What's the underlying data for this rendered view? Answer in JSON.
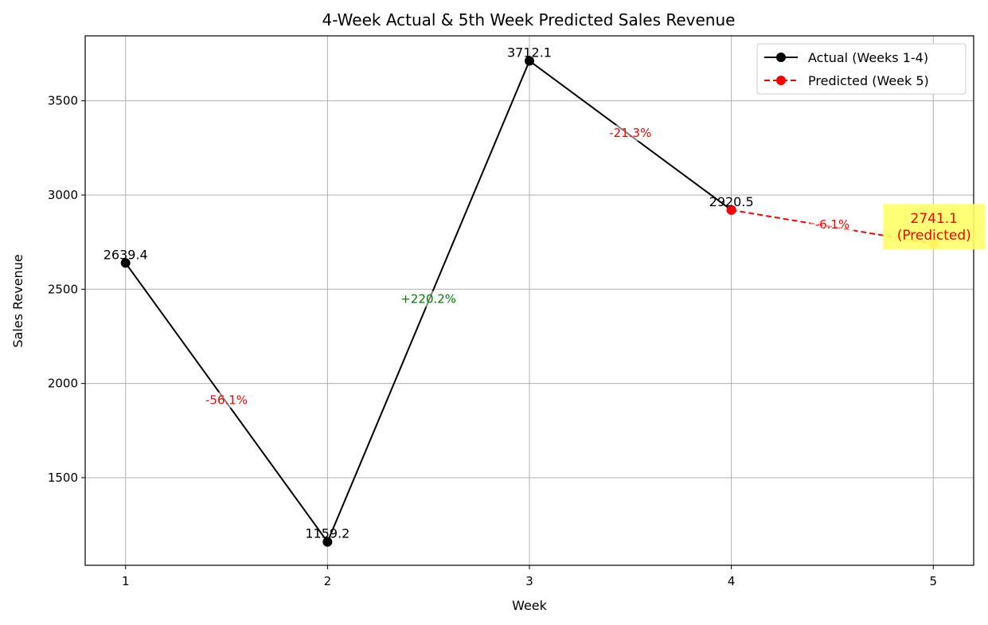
{
  "chart_data": {
    "type": "line",
    "title": "4-Week Actual & 5th Week Predicted Sales Revenue",
    "xlabel": "Week",
    "ylabel": "Sales Revenue",
    "xlim": [
      0.8,
      5.2
    ],
    "ylim": [
      1035,
      3845
    ],
    "xticks": [
      1,
      2,
      3,
      4,
      5
    ],
    "yticks": [
      1500,
      2000,
      2500,
      3000,
      3500
    ],
    "grid": true,
    "legend_position": "top-right",
    "series": [
      {
        "name": "Actual (Weeks 1-4)",
        "style": "solid",
        "color": "#000000",
        "x": [
          1,
          2,
          3,
          4
        ],
        "y": [
          2639.4,
          1159.2,
          3712.1,
          2920.5
        ],
        "labels": [
          "2639.4",
          "1159.2",
          "3712.1",
          "2920.5"
        ]
      },
      {
        "name": "Predicted (Week 5)",
        "style": "dashed",
        "color": "#ff0000",
        "x": [
          4,
          5
        ],
        "y": [
          2920.5,
          2741.1
        ],
        "labels": [
          "2741.1",
          "(Predicted)"
        ]
      }
    ],
    "changes": [
      {
        "x": 1.5,
        "y": 1899.3,
        "label": "-56.1%",
        "color": "#ff0000"
      },
      {
        "x": 2.5,
        "y": 2435.65,
        "label": "+220.2%",
        "color": "#008000"
      },
      {
        "x": 3.5,
        "y": 3316.3,
        "label": "-21.3%",
        "color": "#ff0000"
      },
      {
        "x": 4.5,
        "y": 2830.8,
        "label": "-6.1%",
        "color": "#ff0000"
      }
    ],
    "highlight_color": "#ffff66",
    "predicted_point_color": "#ff8c00"
  }
}
